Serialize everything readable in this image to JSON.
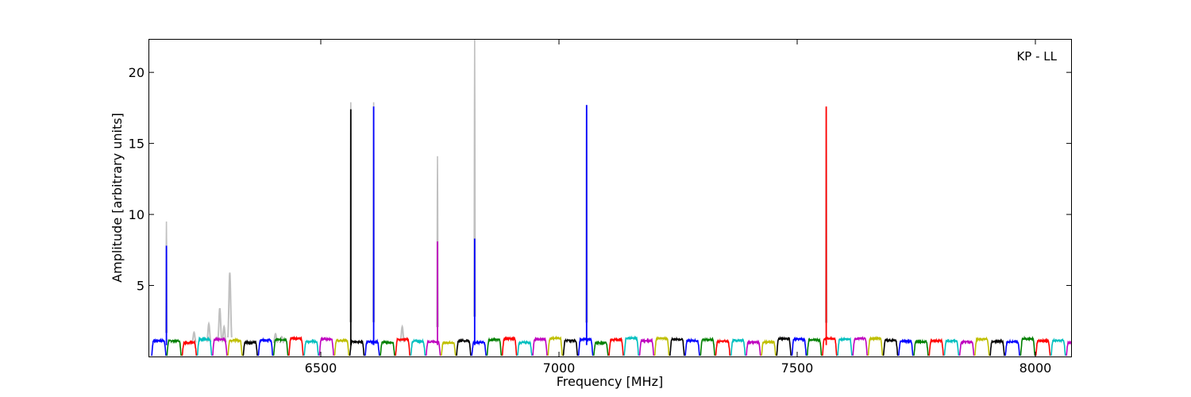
{
  "chart_data": {
    "type": "line",
    "title": "",
    "xlabel": "Frequency [MHz]",
    "ylabel": "Amplitude [arbitrary units]",
    "xlim": [
      6140,
      8075
    ],
    "ylim": [
      0,
      22.3
    ],
    "xticks": [
      6500,
      7000,
      7500,
      8000
    ],
    "yticks": [
      5,
      10,
      15,
      20
    ],
    "grid": false,
    "annotation": "KP - LL",
    "annotation_position": "top-right",
    "channel_width_mhz": 32,
    "channel_start_mhz": 6145,
    "color_cycle": [
      "#0000ff",
      "#008000",
      "#ff0000",
      "#00bfbf",
      "#bf00bf",
      "#bfbf00",
      "#000000"
    ],
    "background_color": "#c0c0c0",
    "series": [
      {
        "role": "background",
        "peaks": [
          {
            "x": 6176,
            "y": 9.5
          },
          {
            "x": 6234,
            "y": 1.7
          },
          {
            "x": 6265,
            "y": 2.3
          },
          {
            "x": 6288,
            "y": 3.4
          },
          {
            "x": 6297,
            "y": 2.1
          },
          {
            "x": 6309,
            "y": 5.9
          },
          {
            "x": 6405,
            "y": 1.6
          },
          {
            "x": 6418,
            "y": 1.4
          },
          {
            "x": 6563,
            "y": 17.9
          },
          {
            "x": 6611,
            "y": 17.9
          },
          {
            "x": 6671,
            "y": 2.1
          },
          {
            "x": 6745,
            "y": 14.1
          },
          {
            "x": 6823,
            "y": 22.3
          },
          {
            "x": 7058,
            "y": 17.7
          },
          {
            "x": 7561,
            "y": 17.5
          }
        ]
      },
      {
        "role": "foreground",
        "peaks": [
          {
            "x": 6176,
            "y": 7.8
          },
          {
            "x": 6563,
            "y": 17.4
          },
          {
            "x": 6611,
            "y": 17.6
          },
          {
            "x": 6745,
            "y": 8.1
          },
          {
            "x": 6823,
            "y": 8.3
          },
          {
            "x": 7058,
            "y": 17.7
          },
          {
            "x": 7561,
            "y": 17.6
          }
        ]
      }
    ]
  }
}
